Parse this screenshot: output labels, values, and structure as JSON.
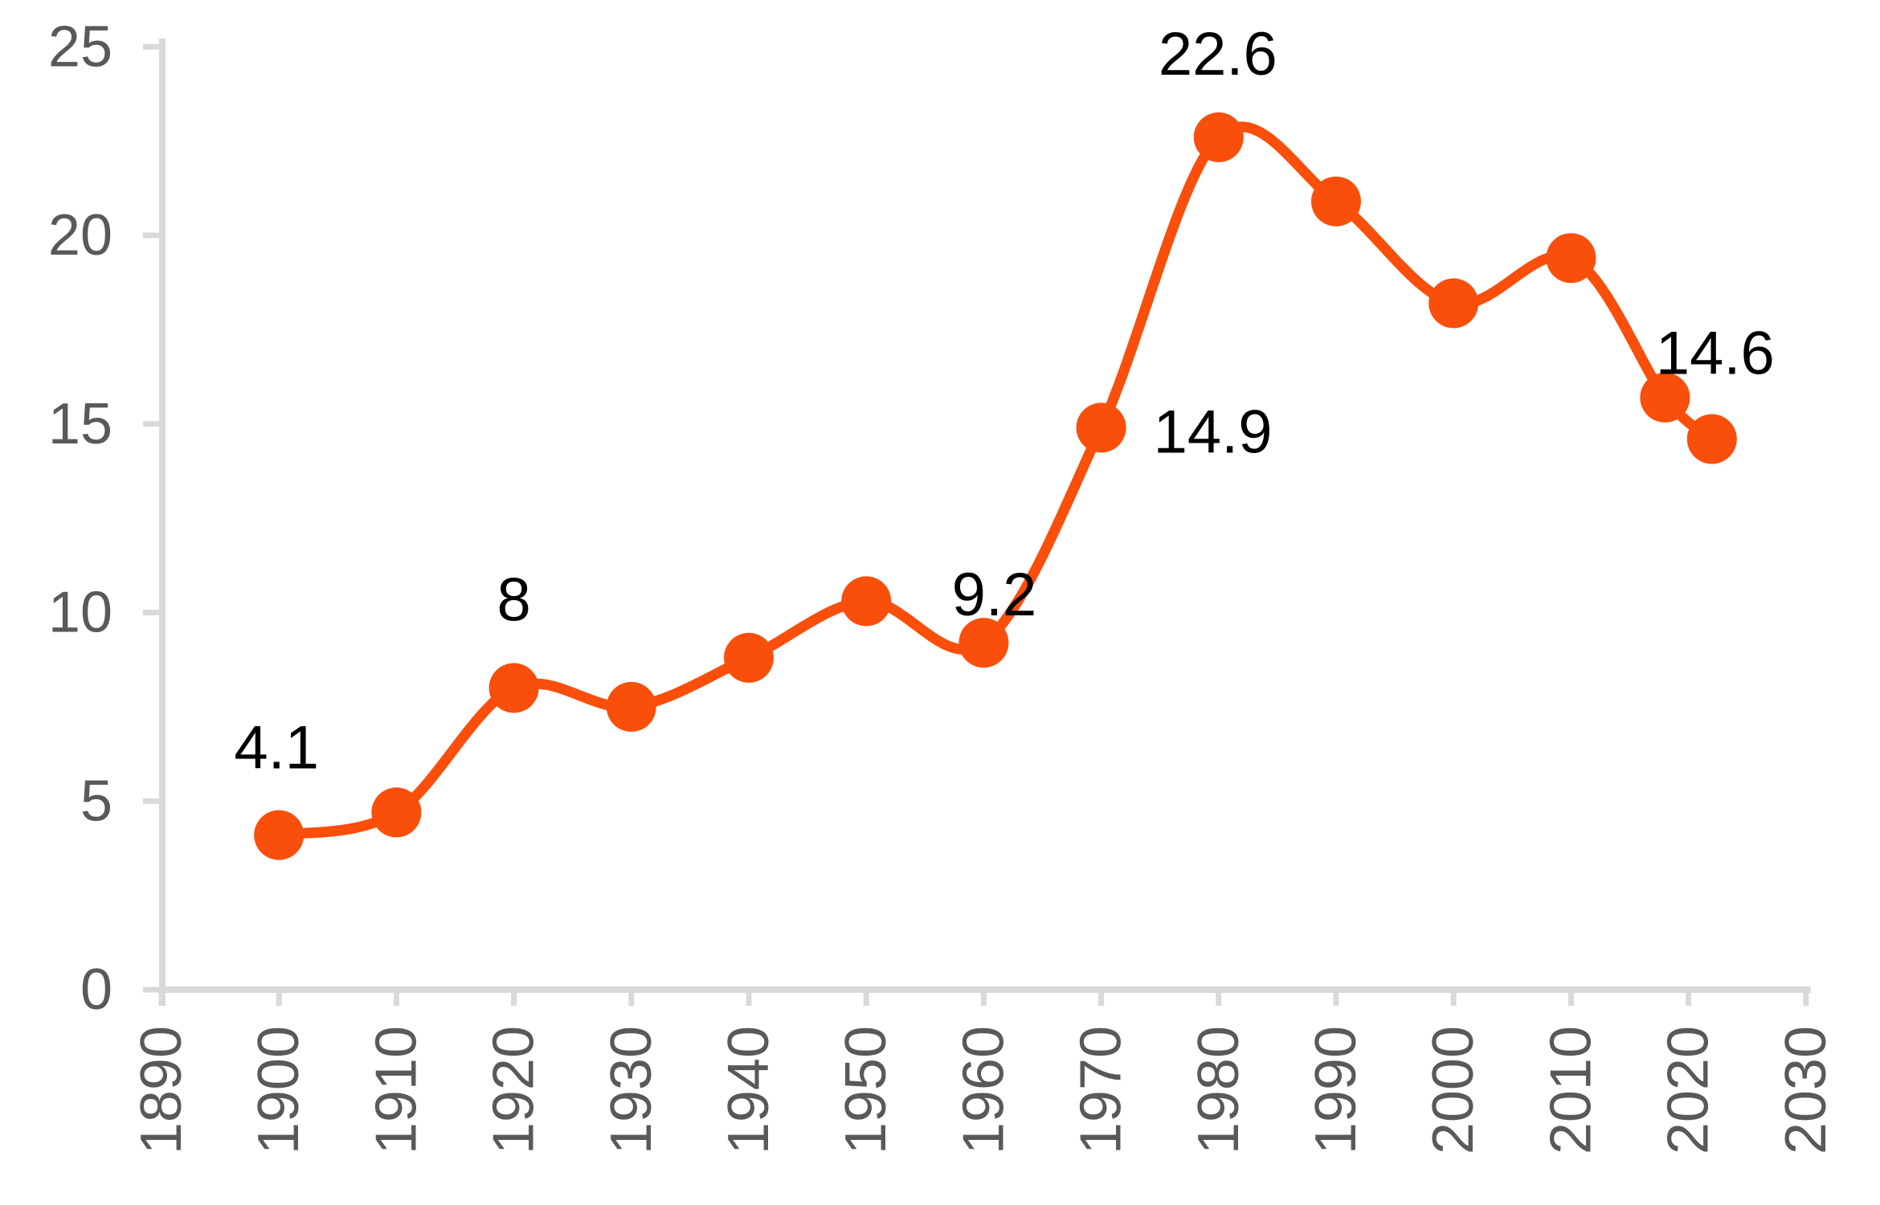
{
  "chart_data": {
    "type": "line",
    "title": "",
    "xlabel": "",
    "ylabel": "",
    "x": [
      1900,
      1910,
      1920,
      1930,
      1940,
      1950,
      1960,
      1970,
      1980,
      1990,
      2000,
      2010,
      2018,
      2022
    ],
    "values": [
      4.1,
      4.7,
      8,
      7.5,
      8.8,
      10.3,
      9.2,
      14.9,
      22.6,
      20.9,
      18.2,
      19.4,
      15.7,
      14.6
    ],
    "point_labels": [
      {
        "x": 1900,
        "text": "4.1"
      },
      {
        "x": 1920,
        "text": "8"
      },
      {
        "x": 1960,
        "text": "9.2"
      },
      {
        "x": 1970,
        "text": "14.9"
      },
      {
        "x": 1980,
        "text": "22.6"
      },
      {
        "x": 2022,
        "text": "14.6"
      }
    ],
    "x_ticks": [
      1890,
      1900,
      1910,
      1920,
      1930,
      1940,
      1950,
      1960,
      1970,
      1980,
      1990,
      2000,
      2010,
      2020,
      2030
    ],
    "y_ticks": [
      0,
      5,
      10,
      15,
      20,
      25
    ],
    "xlim": [
      1890,
      2030
    ],
    "ylim": [
      0,
      25
    ],
    "grid": false,
    "legend": false,
    "smooth": true,
    "x_tick_labels_rotated": true,
    "line_color": "#fa4e0b",
    "marker_color": "#fa4e0b",
    "axis_color": "#d9d9d9",
    "tick_label_color": "#595959",
    "data_label_color": "#000000",
    "background_color": "#ffffff"
  }
}
